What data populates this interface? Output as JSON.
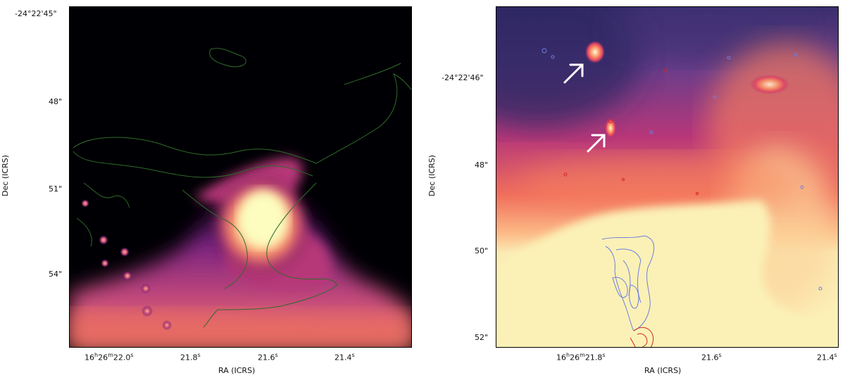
{
  "left_panel": {
    "y_ticks": [
      "-24°22'45\"",
      "48\"",
      "51\"",
      "54\""
    ],
    "x_ticks": [
      {
        "h": "16",
        "hs": "h",
        "m": "26",
        "ms": "m",
        "s": "22.0",
        "ss": "s"
      },
      {
        "s": "21.8",
        "ss": "s"
      },
      {
        "s": "21.6",
        "ss": "s"
      },
      {
        "s": "21.4",
        "ss": "s"
      }
    ],
    "xlabel": "RA (ICRS)",
    "ylabel": "Dec (ICRS)",
    "colormap": "magma",
    "contour_color": "#2e6b2a"
  },
  "right_panel": {
    "y_ticks": [
      "-24°22'46\"",
      "48\"",
      "50\"",
      "52\""
    ],
    "x_ticks": [
      {
        "h": "16",
        "hs": "h",
        "m": "26",
        "ms": "m",
        "s": "21.8",
        "ss": "s"
      },
      {
        "s": "21.6",
        "ss": "s"
      },
      {
        "s": "21.4",
        "ss": "s"
      }
    ],
    "xlabel": "RA (ICRS)",
    "ylabel": "Dec (ICRS)",
    "colormap": "magma",
    "contour_colors": {
      "blue": "#6f7fe0",
      "red": "#d0262a"
    },
    "arrows": 2
  }
}
